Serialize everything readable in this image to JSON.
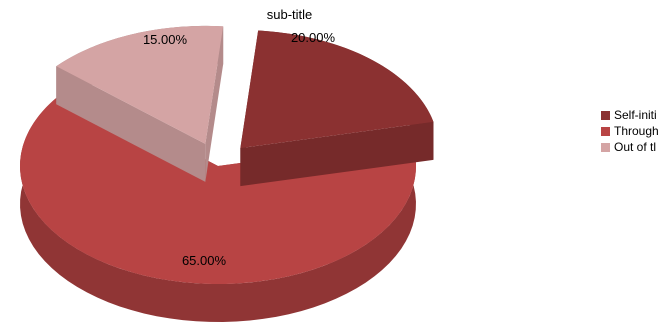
{
  "chart_data": {
    "type": "pie",
    "subtitle": "sub-title",
    "slices": [
      {
        "name": "Self-initi",
        "value": 20.0,
        "label": "20.00%",
        "color": "#8B3131"
      },
      {
        "name": "Through",
        "value": 65.0,
        "label": "65.00%",
        "color": "#B84444"
      },
      {
        "name": "Out of tl",
        "value": 15.0,
        "label": "15.00%",
        "color": "#D4A4A4"
      }
    ],
    "legend_position": "right",
    "style": "3d-exploded"
  }
}
